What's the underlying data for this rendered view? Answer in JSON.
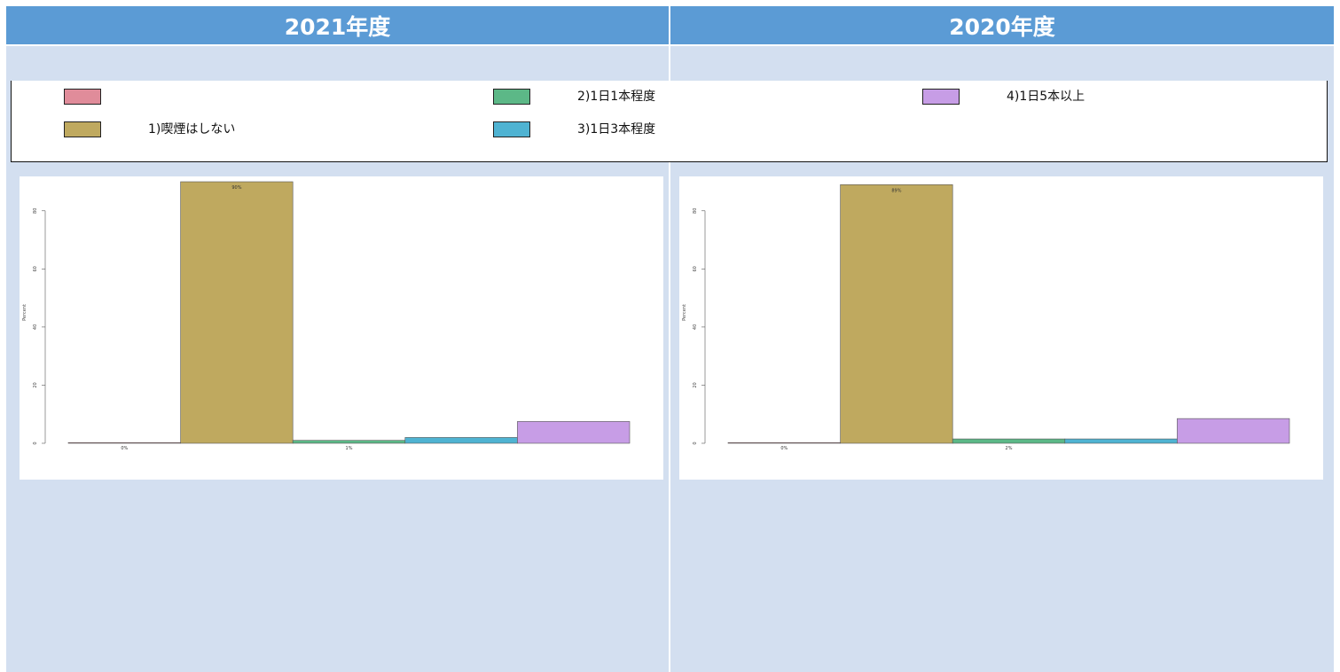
{
  "headers": {
    "left": "2021年度",
    "right": "2020年度"
  },
  "legend": [
    {
      "label": "",
      "color": "#e08c9a"
    },
    {
      "label": "1)喫煙はしない",
      "color": "#bfa95f"
    },
    {
      "label": "2)1日1本程度",
      "color": "#5cb887"
    },
    {
      "label": "3)1日3本程度",
      "color": "#4fb3d2"
    },
    {
      "label": "4)1日5本以上",
      "color": "#c79de6"
    }
  ],
  "chart_data": [
    {
      "type": "bar",
      "panel": "2021年度",
      "ylabel": "Percent",
      "xlabel": "",
      "ylim": [
        0,
        90
      ],
      "yticks": [
        0,
        20,
        40,
        60,
        80
      ],
      "ytick_labels": [
        "0",
        "20",
        "40",
        "60",
        "80"
      ],
      "categories": [
        "",
        "1)喫煙はしない",
        "2)1日1本程度",
        "3)1日3本程度",
        "4)1日5本以上"
      ],
      "values": [
        0,
        90,
        1,
        2,
        7.5
      ],
      "data_labels": [
        "0%",
        "90%",
        "1%",
        "",
        ""
      ],
      "legend": "top"
    },
    {
      "type": "bar",
      "panel": "2020年度",
      "ylabel": "Percent",
      "xlabel": "",
      "ylim": [
        0,
        90
      ],
      "yticks": [
        0,
        20,
        40,
        60,
        80
      ],
      "ytick_labels": [
        "0",
        "20",
        "40",
        "60",
        "80"
      ],
      "categories": [
        "",
        "1)喫煙はしない",
        "2)1日1本程度",
        "3)1日3本程度",
        "4)1日5本以上"
      ],
      "values": [
        0,
        89,
        1.5,
        1.5,
        8.5
      ],
      "data_labels": [
        "0%",
        "89%",
        "2%",
        "",
        ""
      ],
      "legend": "top"
    }
  ]
}
